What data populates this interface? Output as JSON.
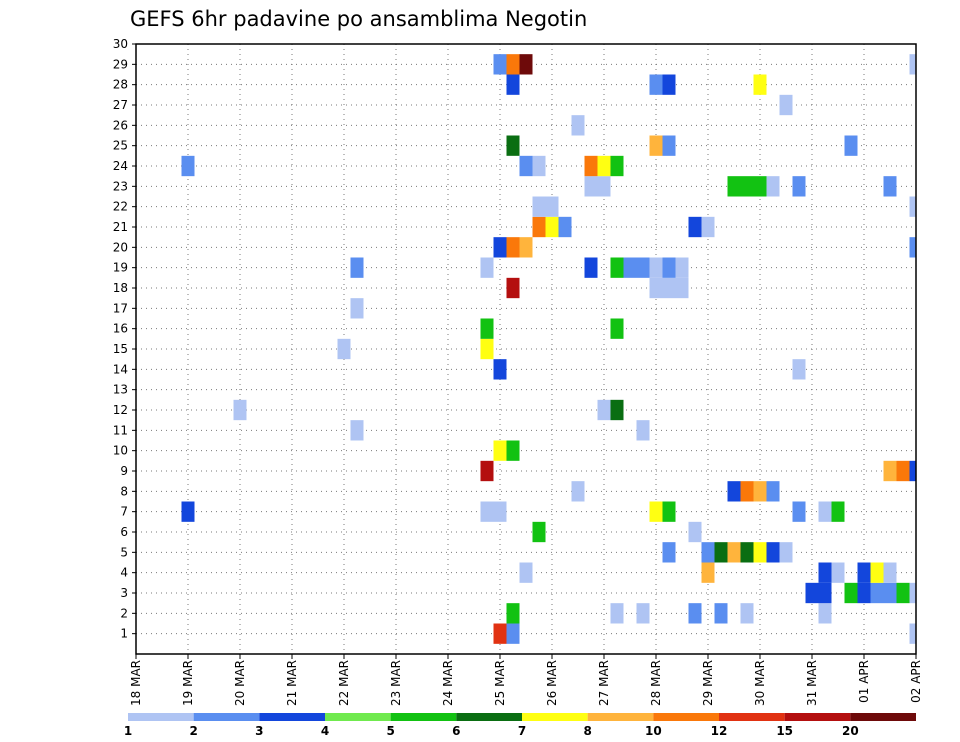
{
  "chart_data": {
    "type": "heatmap",
    "title": "GEFS 6hr padavine po ansamblima Negotin",
    "x_tick_labels": [
      "18 MAR",
      "19 MAR",
      "20 MAR",
      "21 MAR",
      "22 MAR",
      "23 MAR",
      "24 MAR",
      "25 MAR",
      "26 MAR",
      "27 MAR",
      "28 MAR",
      "29 MAR",
      "30 MAR",
      "31 MAR",
      "01 APR",
      "02 APR"
    ],
    "y_tick_labels": [
      "1",
      "2",
      "3",
      "4",
      "5",
      "6",
      "7",
      "8",
      "9",
      "10",
      "11",
      "12",
      "13",
      "14",
      "15",
      "16",
      "17",
      "18",
      "19",
      "20",
      "21",
      "22",
      "23",
      "24",
      "25",
      "26",
      "27",
      "28",
      "29",
      "30"
    ],
    "x_range_days": [
      0,
      15
    ],
    "y_range_members": [
      0,
      30
    ],
    "grid": "dotted",
    "colorbar": {
      "labels": [
        "1",
        "2",
        "3",
        "4",
        "5",
        "6",
        "7",
        "8",
        "10",
        "12",
        "15",
        "20"
      ],
      "colors": [
        "#afc4f3",
        "#5a8ef0",
        "#1346dc",
        "#70ea4e",
        "#12c212",
        "#0a6e12",
        "#ffff12",
        "#ffb43c",
        "#fa780a",
        "#e13212",
        "#b40f0f",
        "#6e0a0a"
      ]
    },
    "cells": [
      {
        "day": 7.0,
        "m": 1,
        "v": 12
      },
      {
        "day": 7.25,
        "m": 1,
        "v": 2
      },
      {
        "day": 15,
        "m": 1,
        "v": 1
      },
      {
        "day": 7.25,
        "m": 2,
        "v": 5
      },
      {
        "day": 9.25,
        "m": 2,
        "v": 1
      },
      {
        "day": 9.75,
        "m": 2,
        "v": 1
      },
      {
        "day": 10.75,
        "m": 2,
        "v": 2
      },
      {
        "day": 11.25,
        "m": 2,
        "v": 2
      },
      {
        "day": 11.75,
        "m": 2,
        "v": 1
      },
      {
        "day": 13.25,
        "m": 2,
        "v": 1
      },
      {
        "day": 13.0,
        "m": 3,
        "v": 3
      },
      {
        "day": 13.25,
        "m": 3,
        "v": 3
      },
      {
        "day": 13.75,
        "m": 3,
        "v": 5
      },
      {
        "day": 14.0,
        "m": 3,
        "v": 3
      },
      {
        "day": 14.25,
        "m": 3,
        "v": 2
      },
      {
        "day": 14.5,
        "m": 3,
        "v": 2
      },
      {
        "day": 14.75,
        "m": 3,
        "v": 5
      },
      {
        "day": 15,
        "m": 3,
        "v": 1
      },
      {
        "day": 7.5,
        "m": 4,
        "v": 1
      },
      {
        "day": 11.0,
        "m": 4,
        "v": 8
      },
      {
        "day": 13.25,
        "m": 4,
        "v": 3
      },
      {
        "day": 13.5,
        "m": 4,
        "v": 1
      },
      {
        "day": 14.0,
        "m": 4,
        "v": 3
      },
      {
        "day": 14.25,
        "m": 4,
        "v": 7
      },
      {
        "day": 14.5,
        "m": 4,
        "v": 1
      },
      {
        "day": 10.25,
        "m": 5,
        "v": 2
      },
      {
        "day": 11.0,
        "m": 5,
        "v": 2
      },
      {
        "day": 11.25,
        "m": 5,
        "v": 6
      },
      {
        "day": 11.5,
        "m": 5,
        "v": 8
      },
      {
        "day": 11.75,
        "m": 5,
        "v": 6
      },
      {
        "day": 12.0,
        "m": 5,
        "v": 7
      },
      {
        "day": 12.25,
        "m": 5,
        "v": 3
      },
      {
        "day": 12.5,
        "m": 5,
        "v": 1
      },
      {
        "day": 7.75,
        "m": 6,
        "v": 5
      },
      {
        "day": 10.75,
        "m": 6,
        "v": 1
      },
      {
        "day": 1.0,
        "m": 7,
        "v": 3
      },
      {
        "day": 6.75,
        "m": 7,
        "v": 1
      },
      {
        "day": 7.0,
        "m": 7,
        "v": 1
      },
      {
        "day": 10.0,
        "m": 7,
        "v": 7
      },
      {
        "day": 10.25,
        "m": 7,
        "v": 5
      },
      {
        "day": 12.75,
        "m": 7,
        "v": 2
      },
      {
        "day": 13.25,
        "m": 7,
        "v": 1
      },
      {
        "day": 13.5,
        "m": 7,
        "v": 5
      },
      {
        "day": 8.5,
        "m": 8,
        "v": 1
      },
      {
        "day": 11.5,
        "m": 8,
        "v": 3
      },
      {
        "day": 11.75,
        "m": 8,
        "v": 10
      },
      {
        "day": 12.0,
        "m": 8,
        "v": 8
      },
      {
        "day": 12.25,
        "m": 8,
        "v": 2
      },
      {
        "day": 6.75,
        "m": 9,
        "v": 15
      },
      {
        "day": 14.5,
        "m": 9,
        "v": 8
      },
      {
        "day": 14.75,
        "m": 9,
        "v": 10
      },
      {
        "day": 15,
        "m": 9,
        "v": 3
      },
      {
        "day": 7.0,
        "m": 10,
        "v": 7
      },
      {
        "day": 7.25,
        "m": 10,
        "v": 5
      },
      {
        "day": 4.25,
        "m": 11,
        "v": 1
      },
      {
        "day": 9.75,
        "m": 11,
        "v": 1
      },
      {
        "day": 2.0,
        "m": 12,
        "v": 1
      },
      {
        "day": 9.0,
        "m": 12,
        "v": 1
      },
      {
        "day": 9.25,
        "m": 12,
        "v": 6
      },
      {
        "day": 7.0,
        "m": 14,
        "v": 3
      },
      {
        "day": 12.75,
        "m": 14,
        "v": 1
      },
      {
        "day": 4.0,
        "m": 15,
        "v": 1
      },
      {
        "day": 6.75,
        "m": 15,
        "v": 7
      },
      {
        "day": 6.75,
        "m": 16,
        "v": 5
      },
      {
        "day": 9.25,
        "m": 16,
        "v": 5
      },
      {
        "day": 4.25,
        "m": 17,
        "v": 1
      },
      {
        "day": 7.25,
        "m": 18,
        "v": 15
      },
      {
        "day": 10.0,
        "m": 18,
        "v": 1
      },
      {
        "day": 10.25,
        "m": 18,
        "v": 1
      },
      {
        "day": 10.5,
        "m": 18,
        "v": 1
      },
      {
        "day": 4.25,
        "m": 19,
        "v": 2
      },
      {
        "day": 6.75,
        "m": 19,
        "v": 1
      },
      {
        "day": 8.75,
        "m": 19,
        "v": 3
      },
      {
        "day": 9.25,
        "m": 19,
        "v": 5
      },
      {
        "day": 9.5,
        "m": 19,
        "v": 2
      },
      {
        "day": 9.75,
        "m": 19,
        "v": 2
      },
      {
        "day": 10.0,
        "m": 19,
        "v": 1
      },
      {
        "day": 10.25,
        "m": 19,
        "v": 2
      },
      {
        "day": 10.5,
        "m": 19,
        "v": 1
      },
      {
        "day": 7.0,
        "m": 20,
        "v": 3
      },
      {
        "day": 7.25,
        "m": 20,
        "v": 10
      },
      {
        "day": 7.5,
        "m": 20,
        "v": 8
      },
      {
        "day": 15,
        "m": 20,
        "v": 2
      },
      {
        "day": 7.75,
        "m": 21,
        "v": 10
      },
      {
        "day": 8.0,
        "m": 21,
        "v": 7
      },
      {
        "day": 8.25,
        "m": 21,
        "v": 2
      },
      {
        "day": 10.75,
        "m": 21,
        "v": 3
      },
      {
        "day": 11.0,
        "m": 21,
        "v": 1
      },
      {
        "day": 7.75,
        "m": 22,
        "v": 1
      },
      {
        "day": 8.0,
        "m": 22,
        "v": 1
      },
      {
        "day": 15,
        "m": 22,
        "v": 1
      },
      {
        "day": 8.75,
        "m": 23,
        "v": 1
      },
      {
        "day": 9.0,
        "m": 23,
        "v": 1
      },
      {
        "day": 11.5,
        "m": 23,
        "v": 5
      },
      {
        "day": 11.75,
        "m": 23,
        "v": 5
      },
      {
        "day": 12.0,
        "m": 23,
        "v": 5
      },
      {
        "day": 12.25,
        "m": 23,
        "v": 1
      },
      {
        "day": 12.75,
        "m": 23,
        "v": 2
      },
      {
        "day": 14.5,
        "m": 23,
        "v": 2
      },
      {
        "day": 1.0,
        "m": 24,
        "v": 2
      },
      {
        "day": 7.5,
        "m": 24,
        "v": 2
      },
      {
        "day": 7.75,
        "m": 24,
        "v": 1
      },
      {
        "day": 8.75,
        "m": 24,
        "v": 10
      },
      {
        "day": 9.0,
        "m": 24,
        "v": 7
      },
      {
        "day": 9.25,
        "m": 24,
        "v": 5
      },
      {
        "day": 7.25,
        "m": 25,
        "v": 6
      },
      {
        "day": 10.0,
        "m": 25,
        "v": 8
      },
      {
        "day": 10.25,
        "m": 25,
        "v": 2
      },
      {
        "day": 13.75,
        "m": 25,
        "v": 2
      },
      {
        "day": 8.5,
        "m": 26,
        "v": 1
      },
      {
        "day": 12.5,
        "m": 27,
        "v": 1
      },
      {
        "day": 7.25,
        "m": 28,
        "v": 3
      },
      {
        "day": 10.0,
        "m": 28,
        "v": 2
      },
      {
        "day": 10.25,
        "m": 28,
        "v": 3
      },
      {
        "day": 12.0,
        "m": 28,
        "v": 7
      },
      {
        "day": 7.0,
        "m": 29,
        "v": 2
      },
      {
        "day": 7.25,
        "m": 29,
        "v": 10
      },
      {
        "day": 7.5,
        "m": 29,
        "v": 20
      },
      {
        "day": 15,
        "m": 29,
        "v": 1
      }
    ]
  }
}
